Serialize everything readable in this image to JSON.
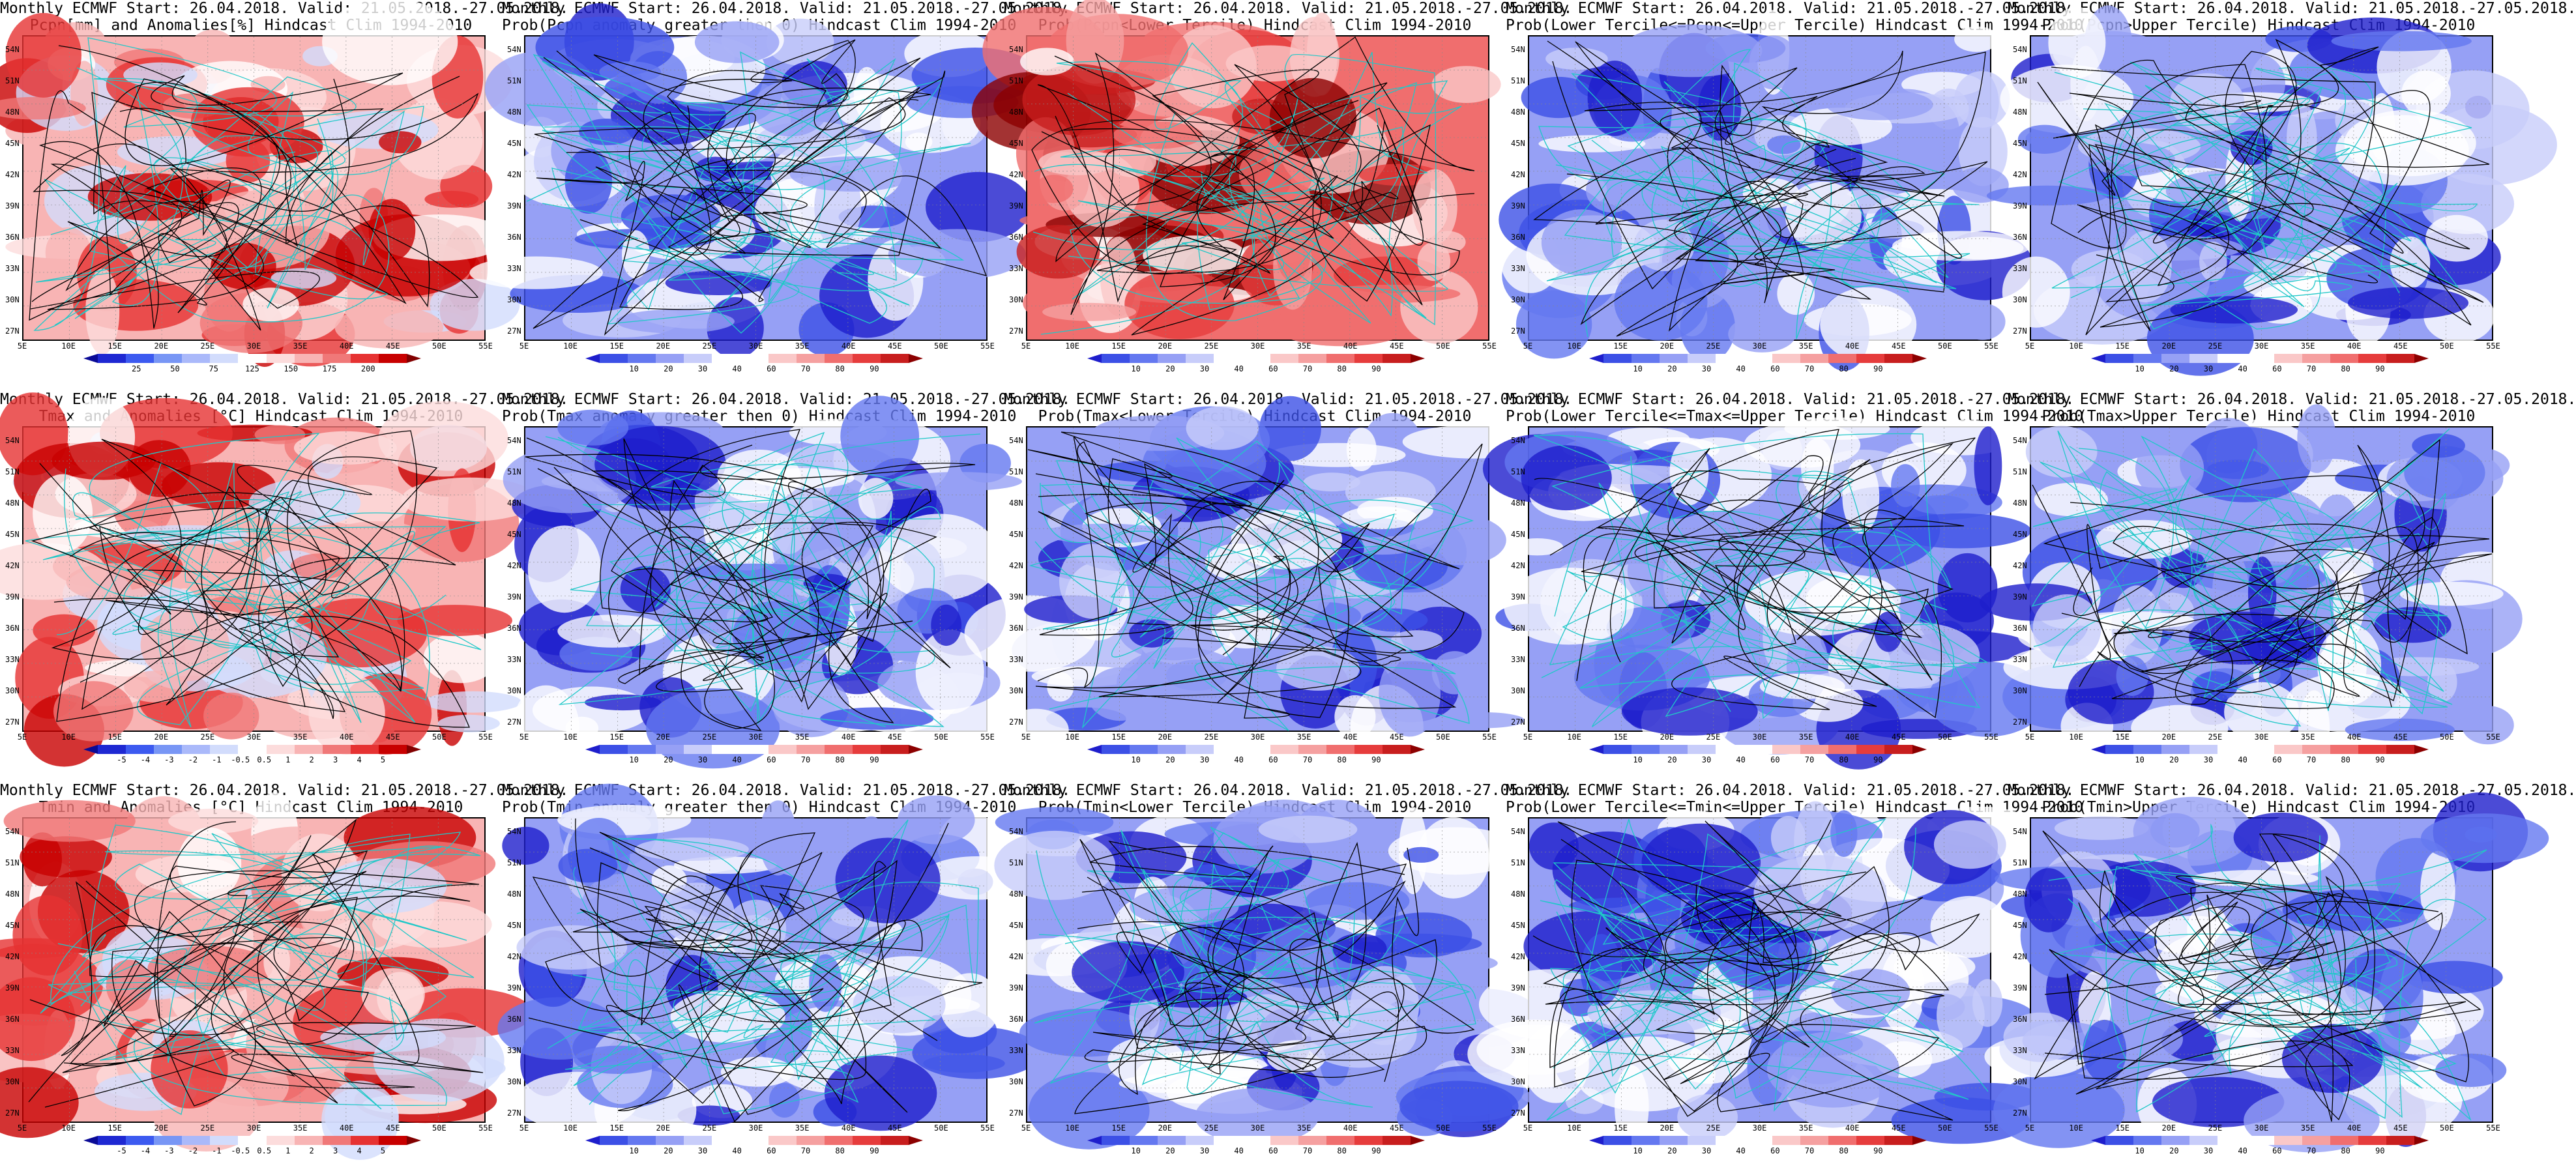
{
  "panels": [
    {
      "title_line1": "Monthly ECMWF Start: 26.04.2018. Valid: 21.05.2018.-27.05.2018.",
      "title_line2": "Pcpn[mm] and Anomalies[%] Hindcast Clim 1994-2010",
      "palette": "anom",
      "colorbar_labels": [
        "25",
        "50",
        "75",
        "125",
        "150",
        "175",
        "200"
      ]
    },
    {
      "title_line1": "Monthly ECMWF Start: 26.04.2018. Valid: 21.05.2018.-27.05.2018.",
      "title_line2": "Prob(Pcpn anomaly greater then 0) Hindcast Clim 1994-2010",
      "palette": "prob",
      "colorbar_labels": [
        "10",
        "20",
        "30",
        "40",
        "60",
        "70",
        "80",
        "90"
      ]
    },
    {
      "title_line1": "Monthly ECMWF Start: 26.04.2018. Valid: 21.05.2018.-27.05.2018.",
      "title_line2": "Prob(Pcpn<Lower Tercile) Hindcast Clim 1994-2010",
      "palette": "prob",
      "colorbar_labels": [
        "10",
        "20",
        "30",
        "40",
        "60",
        "70",
        "80",
        "90"
      ]
    },
    {
      "title_line1": "Monthly ECMWF Start: 26.04.2018. Valid: 21.05.2018.-27.05.2018.",
      "title_line2": "Prob(Lower Tercile<=Pcpn<=Upper Tercile) Hindcast Clim 1994-2010",
      "palette": "prob",
      "colorbar_labels": [
        "10",
        "20",
        "30",
        "40",
        "60",
        "70",
        "80",
        "90"
      ]
    },
    {
      "title_line1": "Monthly ECMWF Start: 26.04.2018. Valid: 21.05.2018.-27.05.2018.",
      "title_line2": "Prob(Pcpn>Upper Tercile) Hindcast Clim 1994-2010",
      "palette": "prob",
      "colorbar_labels": [
        "10",
        "20",
        "30",
        "40",
        "60",
        "70",
        "80",
        "90"
      ]
    },
    {
      "title_line1": "Monthly ECMWF Start: 26.04.2018. Valid: 21.05.2018.-27.05.2018.",
      "title_line2": "Tmax and Anomalies [°C] Hindcast Clim 1994-2010",
      "palette": "anom",
      "colorbar_labels": [
        "-5",
        "-4",
        "-3",
        "-2",
        "-1",
        "-0.5",
        "0.5",
        "1",
        "2",
        "3",
        "4",
        "5"
      ]
    },
    {
      "title_line1": "Monthly ECMWF Start: 26.04.2018. Valid: 21.05.2018.-27.05.2018.",
      "title_line2": "Prob(Tmax anomaly greater then 0) Hindcast Clim 1994-2010",
      "palette": "prob",
      "colorbar_labels": [
        "10",
        "20",
        "30",
        "40",
        "60",
        "70",
        "80",
        "90"
      ]
    },
    {
      "title_line1": "Monthly ECMWF Start: 26.04.2018. Valid: 21.05.2018.-27.05.2018.",
      "title_line2": "Prob(Tmax<Lower Tercile) Hindcast Clim 1994-2010",
      "palette": "prob",
      "colorbar_labels": [
        "10",
        "20",
        "30",
        "40",
        "60",
        "70",
        "80",
        "90"
      ]
    },
    {
      "title_line1": "Monthly ECMWF Start: 26.04.2018. Valid: 21.05.2018.-27.05.2018.",
      "title_line2": "Prob(Lower Tercile<=Tmax<=Upper Tercile) Hindcast Clim 1994-2010",
      "palette": "prob",
      "colorbar_labels": [
        "10",
        "20",
        "30",
        "40",
        "60",
        "70",
        "80",
        "90"
      ]
    },
    {
      "title_line1": "Monthly ECMWF Start: 26.04.2018. Valid: 21.05.2018.-27.05.2018.",
      "title_line2": "Prob(Tmax>Upper Tercile) Hindcast Clim 1994-2010",
      "palette": "prob",
      "colorbar_labels": [
        "10",
        "20",
        "30",
        "40",
        "60",
        "70",
        "80",
        "90"
      ]
    },
    {
      "title_line1": "Monthly ECMWF Start: 26.04.2018. Valid: 21.05.2018.-27.05.2018.",
      "title_line2": "Tmin and Anomalies [°C] Hindcast Clim 1994-2010",
      "palette": "anom",
      "colorbar_labels": [
        "-5",
        "-4",
        "-3",
        "-2",
        "-1",
        "-0.5",
        "0.5",
        "1",
        "2",
        "3",
        "4",
        "5"
      ]
    },
    {
      "title_line1": "Monthly ECMWF Start: 26.04.2018. Valid: 21.05.2018.-27.05.2018.",
      "title_line2": "Prob(Tmin anomaly greater then 0) Hindcast Clim 1994-2010",
      "palette": "prob",
      "colorbar_labels": [
        "10",
        "20",
        "30",
        "40",
        "60",
        "70",
        "80",
        "90"
      ]
    },
    {
      "title_line1": "Monthly ECMWF Start: 26.04.2018. Valid: 21.05.2018.-27.05.2018.",
      "title_line2": "Prob(Tmin<Lower Tercile) Hindcast Clim 1994-2010",
      "palette": "prob",
      "colorbar_labels": [
        "10",
        "20",
        "30",
        "40",
        "60",
        "70",
        "80",
        "90"
      ]
    },
    {
      "title_line1": "Monthly ECMWF Start: 26.04.2018. Valid: 21.05.2018.-27.05.2018.",
      "title_line2": "Prob(Lower Tercile<=Tmin<=Upper Tercile) Hindcast Clim 1994-2010",
      "palette": "prob",
      "colorbar_labels": [
        "10",
        "20",
        "30",
        "40",
        "60",
        "70",
        "80",
        "90"
      ]
    },
    {
      "title_line1": "Monthly ECMWF Start: 26.04.2018. Valid: 21.05.2018.-27.05.2018.",
      "title_line2": "Prob(Tmin>Upper Tercile) Hindcast Clim 1994-2010",
      "palette": "prob",
      "colorbar_labels": [
        "10",
        "20",
        "30",
        "40",
        "60",
        "70",
        "80",
        "90"
      ]
    }
  ],
  "lat_labels": [
    "54N",
    "51N",
    "48N",
    "45N",
    "42N",
    "39N",
    "36N",
    "33N",
    "30N",
    "27N"
  ],
  "lon_labels": [
    "5E",
    "10E",
    "15E",
    "20E",
    "25E",
    "30E",
    "35E",
    "40E",
    "45E",
    "50E",
    "55E"
  ],
  "colors": {
    "frame": "#000000",
    "coastline": "#20c8c8",
    "contour": "#000000",
    "prob_palette": [
      "#1e1ecc",
      "#3c50e6",
      "#6478f0",
      "#96a0f5",
      "#c8cdfa",
      "#ffffff",
      "#ffffff",
      "#fac8c8",
      "#f5a0a0",
      "#f06e6e",
      "#e63c3c",
      "#c81e1e",
      "#8c0000"
    ],
    "anom_palette": [
      "#0a0a96",
      "#1e28d2",
      "#3c5af0",
      "#7896f5",
      "#aab9fa",
      "#d2dcfc",
      "#ffffff",
      "#fcdcdc",
      "#f8b4b4",
      "#f07878",
      "#e63232",
      "#c80000",
      "#820000"
    ]
  }
}
